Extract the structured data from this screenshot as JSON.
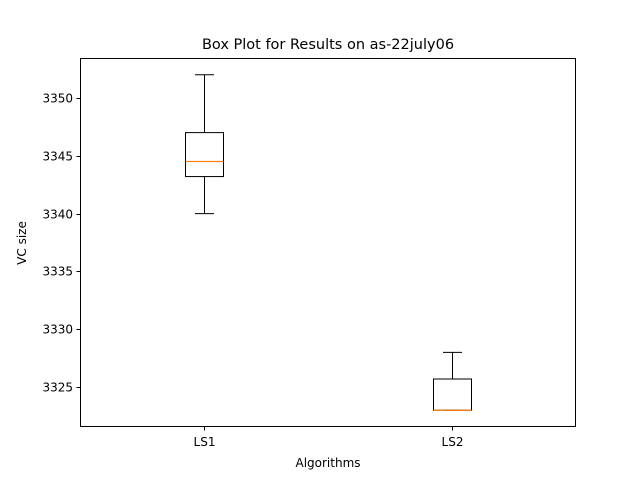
{
  "chart_data": {
    "type": "box",
    "title": "Box Plot for Results on as-22july06",
    "xlabel": "Algorithms",
    "ylabel": "VC size",
    "categories": [
      "LS1",
      "LS2"
    ],
    "boxes": [
      {
        "name": "LS1",
        "whisker_low": 3340,
        "q1": 3343.2,
        "median": 3344.5,
        "q3": 3347,
        "whisker_high": 3352
      },
      {
        "name": "LS2",
        "whisker_low": 3323,
        "q1": 3323,
        "median": 3323,
        "q3": 3325.7,
        "whisker_high": 3328
      }
    ],
    "ylim": [
      3321.55,
      3353.45
    ],
    "yticks": [
      3325,
      3330,
      3335,
      3340,
      3345,
      3350
    ],
    "ytick_labels": [
      "3325",
      "3330",
      "3335",
      "3340",
      "3345",
      "3350"
    ],
    "grid": false,
    "colors": {
      "box": "#000000",
      "median": "#ff7f0e"
    }
  }
}
